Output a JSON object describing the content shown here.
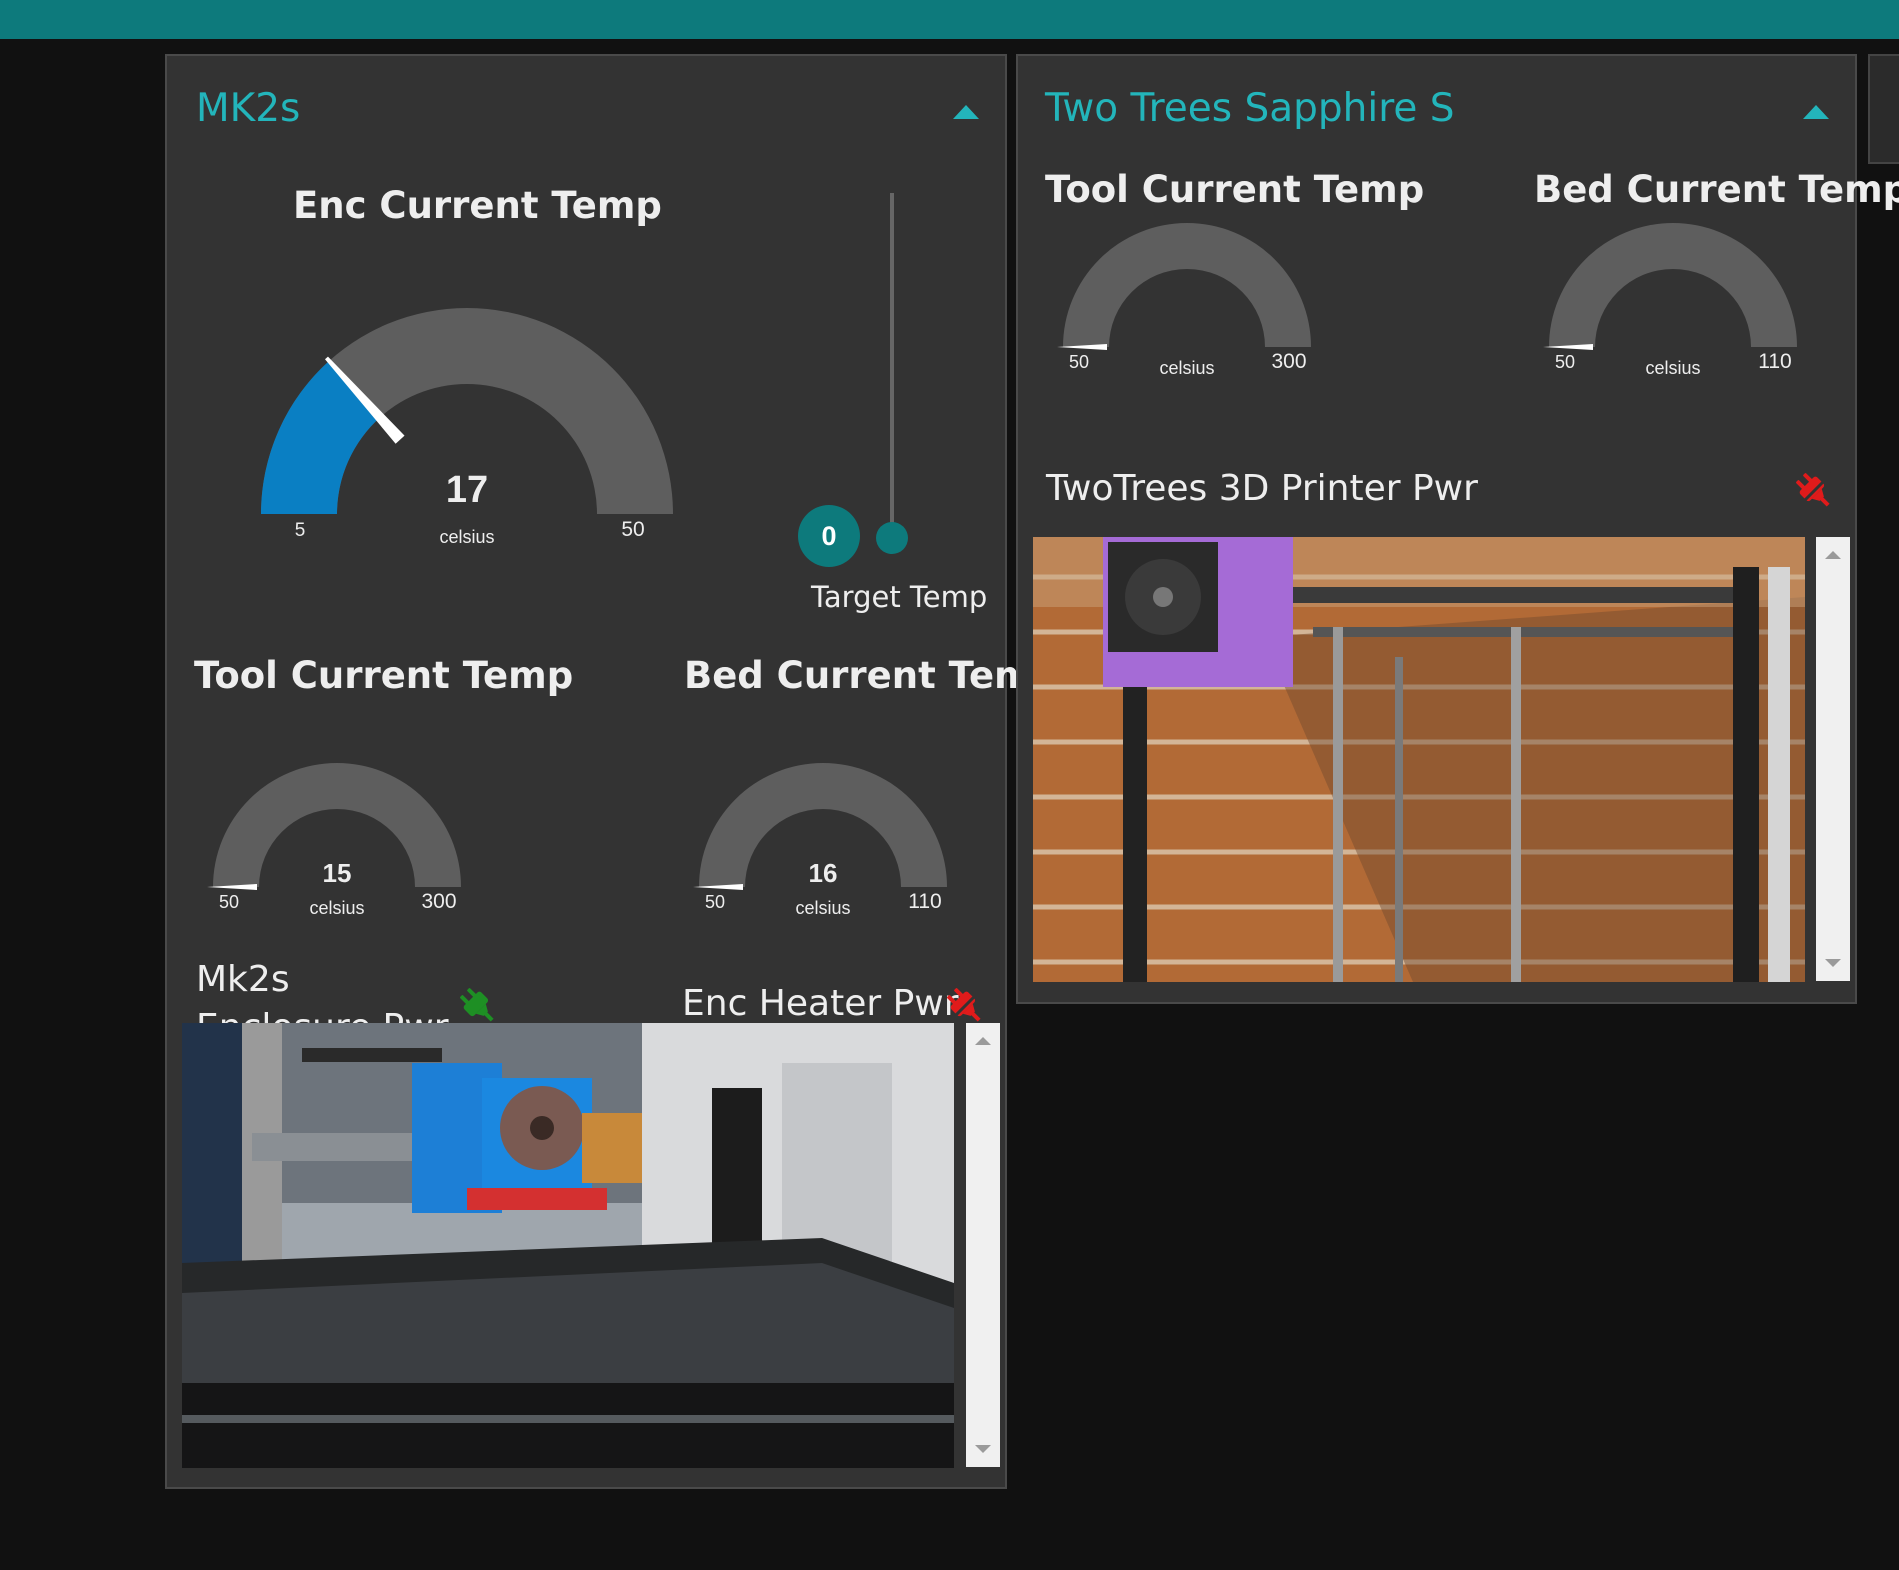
{
  "colors": {
    "accent": "#23b5bb",
    "topbar": "#0d7a7c",
    "gauge_fill": "#0a7fc3",
    "plug_on": "#1e8f24",
    "plug_off": "#e01b1b"
  },
  "mk2s": {
    "title": "MK2s",
    "enc_gauge": {
      "label": "Enc Current Temp",
      "value": "17",
      "value_num": 17,
      "min": "5",
      "min_num": 5,
      "max": "50",
      "max_num": 50,
      "units": "celsius"
    },
    "target": {
      "value": "0",
      "label": "Target Temp"
    },
    "tool_gauge": {
      "label": "Tool Current Temp",
      "value": "15",
      "value_num": 15,
      "min": "50",
      "min_num": 50,
      "max": "300",
      "max_num": 300,
      "units": "celsius"
    },
    "bed_gauge": {
      "label": "Bed Current Temp",
      "value": "16",
      "value_num": 16,
      "min": "50",
      "min_num": 50,
      "max": "110",
      "max_num": 110,
      "units": "celsius"
    },
    "enclosure_pwr": {
      "label_line1": "Mk2s",
      "label_line2": "Enclosure Pwr",
      "state": "on",
      "icon": "plug-icon"
    },
    "heater_pwr": {
      "label": "Enc Heater Pwr",
      "state": "off",
      "icon": "plug-icon"
    },
    "camera": {
      "description_icon": "camera-feed"
    }
  },
  "twotrees": {
    "title": "Two Trees Sapphire S",
    "tool_gauge": {
      "label": "Tool Current Temp",
      "value": "",
      "value_num": 0,
      "min": "50",
      "min_num": 50,
      "max": "300",
      "max_num": 300,
      "units": "celsius"
    },
    "bed_gauge": {
      "label": "Bed Current Temp",
      "value": "",
      "value_num": 0,
      "min": "50",
      "min_num": 50,
      "max": "110",
      "max_num": 110,
      "units": "celsius"
    },
    "printer_pwr": {
      "label": "TwoTrees 3D Printer Pwr",
      "state": "off",
      "icon": "plug-icon"
    },
    "camera": {
      "description_icon": "camera-feed"
    }
  }
}
